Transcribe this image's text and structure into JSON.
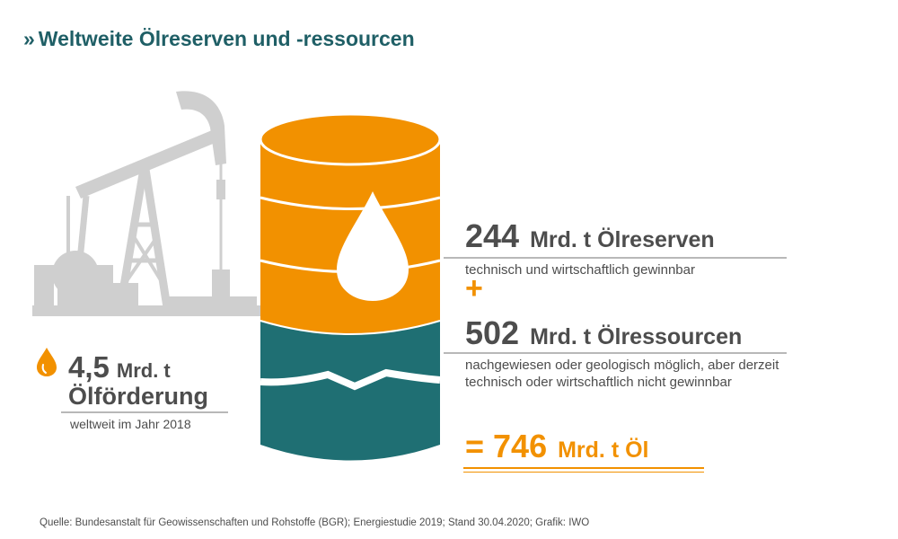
{
  "title": "Weltweite Ölreserven und -ressourcen",
  "title_marker": "»",
  "colors": {
    "title": "#1f5f66",
    "orange": "#f29100",
    "teal": "#1f6f73",
    "grey_pump": "#cfcfcf",
    "text": "#4d4d4d"
  },
  "icons": {
    "pump": "oil-pump-icon",
    "barrel": "oil-barrel-icon",
    "drop": "oil-drop-icon"
  },
  "production": {
    "value": "4,5",
    "unit": "Mrd. t",
    "label": "Ölförderung",
    "sub": "weltweit im Jahr 2018"
  },
  "reserves": {
    "value": "244",
    "unit": "Mrd. t Ölreserven",
    "sub": "technisch und wirtschaftlich gewinnbar"
  },
  "plus": "+",
  "resources": {
    "value": "502",
    "unit": "Mrd. t Ölressourcen",
    "sub": "nachgewiesen oder geologisch möglich, aber derzeit technisch oder wirtschaftlich nicht gewinnbar"
  },
  "total": {
    "eq": "=",
    "value": "746",
    "unit": "Mrd. t Öl"
  },
  "source": "Quelle: Bundesanstalt für Geowissenschaften und Rohstoffe (BGR); Energiestudie 2019; Stand 30.04.2020; Grafik: IWO"
}
